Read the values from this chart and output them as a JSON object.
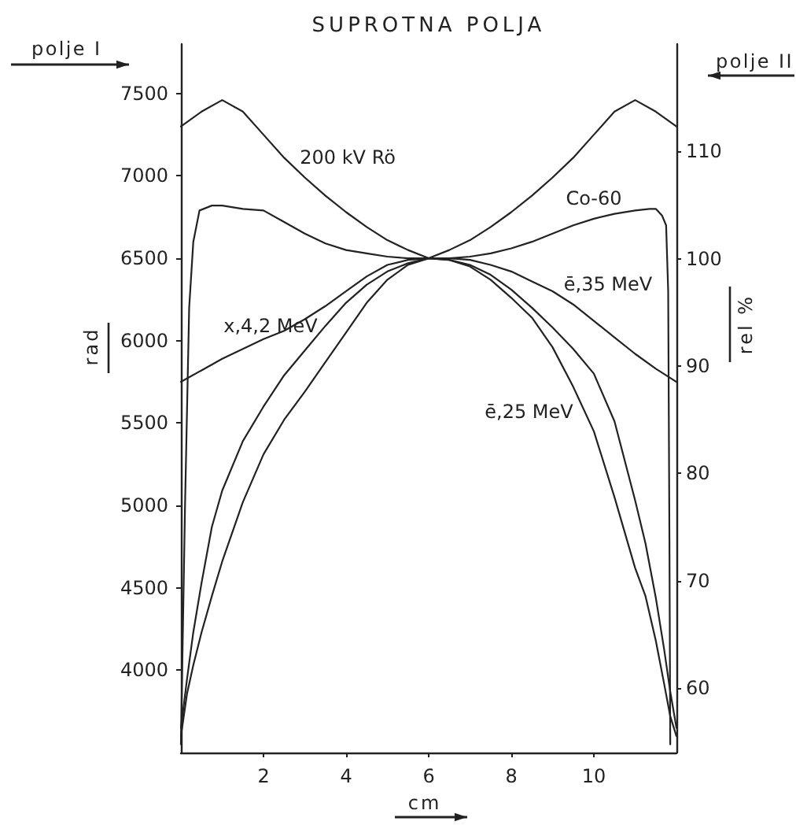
{
  "chart_data": {
    "type": "line",
    "title": "SUPROTNA POLJA",
    "xlabel": "cm",
    "ylabel": "rad",
    "y2label": "rel %",
    "annotations": [
      "polje I",
      "polje II"
    ],
    "xlim": [
      0,
      12
    ],
    "xticks": [
      2,
      4,
      6,
      8,
      10
    ],
    "ylim": [
      3500,
      7800
    ],
    "yticks": [
      4000,
      4500,
      5000,
      5500,
      6000,
      6500,
      7000,
      7500
    ],
    "y2lim": [
      54,
      120
    ],
    "y2ticks": [
      60,
      70,
      80,
      90,
      100,
      110
    ],
    "grid": false,
    "legend": false,
    "marker": "none",
    "line_style": "solid",
    "series": [
      {
        "name": "200 kV Rö",
        "color": "#222222",
        "x": [
          0,
          0.5,
          1,
          1.5,
          2,
          2.5,
          3,
          3.5,
          4,
          4.5,
          5,
          5.5,
          6,
          6.5,
          7,
          7.5,
          8,
          8.5,
          9,
          9.5,
          10,
          10.5,
          11,
          11.5,
          12
        ],
        "values": [
          7300,
          7390,
          7460,
          7390,
          7250,
          7110,
          6990,
          6880,
          6780,
          6690,
          6610,
          6550,
          6500,
          6550,
          6610,
          6690,
          6780,
          6880,
          6990,
          7110,
          7250,
          7390,
          7460,
          7390,
          7300
        ]
      },
      {
        "name": "Co-60",
        "color": "#222222",
        "x": [
          0,
          0.1,
          0.2,
          0.3,
          0.45,
          0.75,
          1,
          1.5,
          2,
          2.5,
          3,
          3.5,
          4,
          4.5,
          5,
          5.5,
          6,
          6.5,
          7,
          7.5,
          8,
          8.5,
          9,
          9.5,
          10,
          10.5,
          11,
          11.35,
          11.5,
          11.65,
          11.75,
          11.8,
          11.83,
          11.85
        ],
        "values": [
          3550,
          5000,
          6200,
          6600,
          6790,
          6820,
          6820,
          6800,
          6790,
          6720,
          6650,
          6590,
          6550,
          6530,
          6510,
          6500,
          6500,
          6500,
          6510,
          6530,
          6560,
          6600,
          6650,
          6700,
          6740,
          6770,
          6790,
          6800,
          6800,
          6760,
          6700,
          6300,
          4800,
          3550
        ]
      },
      {
        "name": "ē,35 MeV",
        "color": "#222222",
        "x": [
          0,
          0.5,
          1,
          1.5,
          2,
          2.5,
          3,
          3.5,
          4,
          4.5,
          5,
          5.5,
          6,
          6.5,
          7,
          7.5,
          8,
          8.5,
          9,
          9.5,
          10,
          10.5,
          11,
          11.5,
          12
        ],
        "values": [
          5750,
          5820,
          5890,
          5950,
          6010,
          6060,
          6130,
          6210,
          6300,
          6390,
          6460,
          6490,
          6500,
          6500,
          6490,
          6460,
          6420,
          6360,
          6300,
          6220,
          6120,
          6020,
          5920,
          5830,
          5750
        ]
      },
      {
        "name": "x,4,2 MeV",
        "color": "#222222",
        "x": [
          0,
          0.15,
          0.3,
          0.5,
          0.75,
          1,
          1.5,
          2,
          2.5,
          3,
          3.5,
          4,
          4.5,
          5,
          5.5,
          6,
          6.5,
          7,
          7.5,
          8,
          8.5,
          9,
          9.5,
          10,
          10.5,
          11,
          11.25,
          11.5,
          11.7,
          11.85,
          12
        ],
        "values": [
          3650,
          3950,
          4230,
          4530,
          4870,
          5090,
          5390,
          5600,
          5790,
          5940,
          6090,
          6230,
          6340,
          6420,
          6470,
          6500,
          6490,
          6460,
          6400,
          6310,
          6200,
          6080,
          5950,
          5800,
          5510,
          5030,
          4770,
          4440,
          4130,
          3870,
          3650
        ]
      },
      {
        "name": "ē,25 MeV",
        "color": "#222222",
        "x": [
          0,
          0.15,
          0.3,
          0.5,
          0.75,
          1,
          1.5,
          2,
          2.5,
          3,
          3.5,
          4,
          4.5,
          5,
          5.5,
          6,
          6.5,
          7,
          7.5,
          8,
          8.5,
          9,
          9.5,
          10,
          10.5,
          11,
          11.25,
          11.5,
          11.7,
          11.85,
          12
        ],
        "values": [
          3600,
          3860,
          4030,
          4230,
          4450,
          4660,
          5020,
          5310,
          5520,
          5690,
          5870,
          6050,
          6230,
          6370,
          6460,
          6500,
          6490,
          6450,
          6370,
          6260,
          6140,
          5960,
          5720,
          5450,
          5050,
          4620,
          4450,
          4180,
          3920,
          3720,
          3600
        ]
      }
    ]
  }
}
